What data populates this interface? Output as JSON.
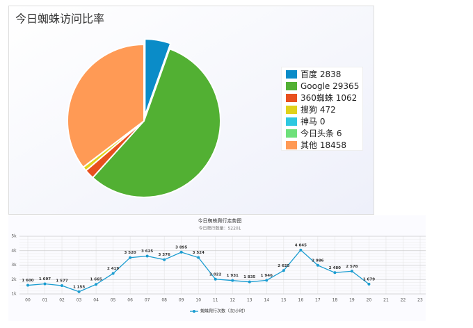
{
  "chart_data": [
    {
      "type": "pie",
      "title": "今日蜘蛛访问比率",
      "categories": [
        "百度",
        "Google",
        "360蜘蛛",
        "搜狗",
        "神马",
        "今日头条",
        "其他"
      ],
      "values": [
        2838,
        29365,
        1062,
        472,
        0,
        6,
        18458
      ],
      "colors": [
        "#0a8cc8",
        "#52b033",
        "#e8501e",
        "#e0d21a",
        "#2ec8e0",
        "#6ee07a",
        "#ff9a55"
      ],
      "legend": "right"
    },
    {
      "type": "line",
      "title": "今日蜘蛛爬行走势图",
      "subtitle": "今日爬行数量：52201",
      "categories": [
        "00",
        "01",
        "02",
        "03",
        "04",
        "05",
        "06",
        "07",
        "08",
        "09",
        "10",
        "11",
        "12",
        "13",
        "14",
        "15",
        "16",
        "17",
        "18",
        "19",
        "20",
        "21",
        "22",
        "23"
      ],
      "series": [
        {
          "name": "蜘蛛爬行次数（次/小时）",
          "color": "#1a9cd0",
          "values": [
            1600,
            1697,
            1577,
            1155,
            1665,
            2419,
            3520,
            3625,
            3376,
            3895,
            3524,
            2022,
            1931,
            1835,
            1946,
            2625,
            4045,
            2986,
            2480,
            2578,
            1679,
            null,
            null,
            null
          ],
          "value_labels": [
            "1 600",
            "1 697",
            "1 577",
            "1 155",
            "1 665",
            "2 419",
            "3 520",
            "3 625",
            "3 376",
            "3 895",
            "3 524",
            "2 022",
            "1 931",
            "1 835",
            "1 946",
            "2 625",
            "4 045",
            "2 986",
            "2 480",
            "2 578",
            "1 679",
            null,
            null,
            null
          ]
        }
      ],
      "ylim": [
        1000,
        5000
      ],
      "yticks": [
        {
          "value": 1000,
          "label": "1k"
        },
        {
          "value": 2000,
          "label": "2k"
        },
        {
          "value": 3000,
          "label": "3k"
        },
        {
          "value": 4000,
          "label": "4k"
        },
        {
          "value": 5000,
          "label": "5k"
        }
      ],
      "grid": true,
      "legend": "bottom"
    }
  ]
}
